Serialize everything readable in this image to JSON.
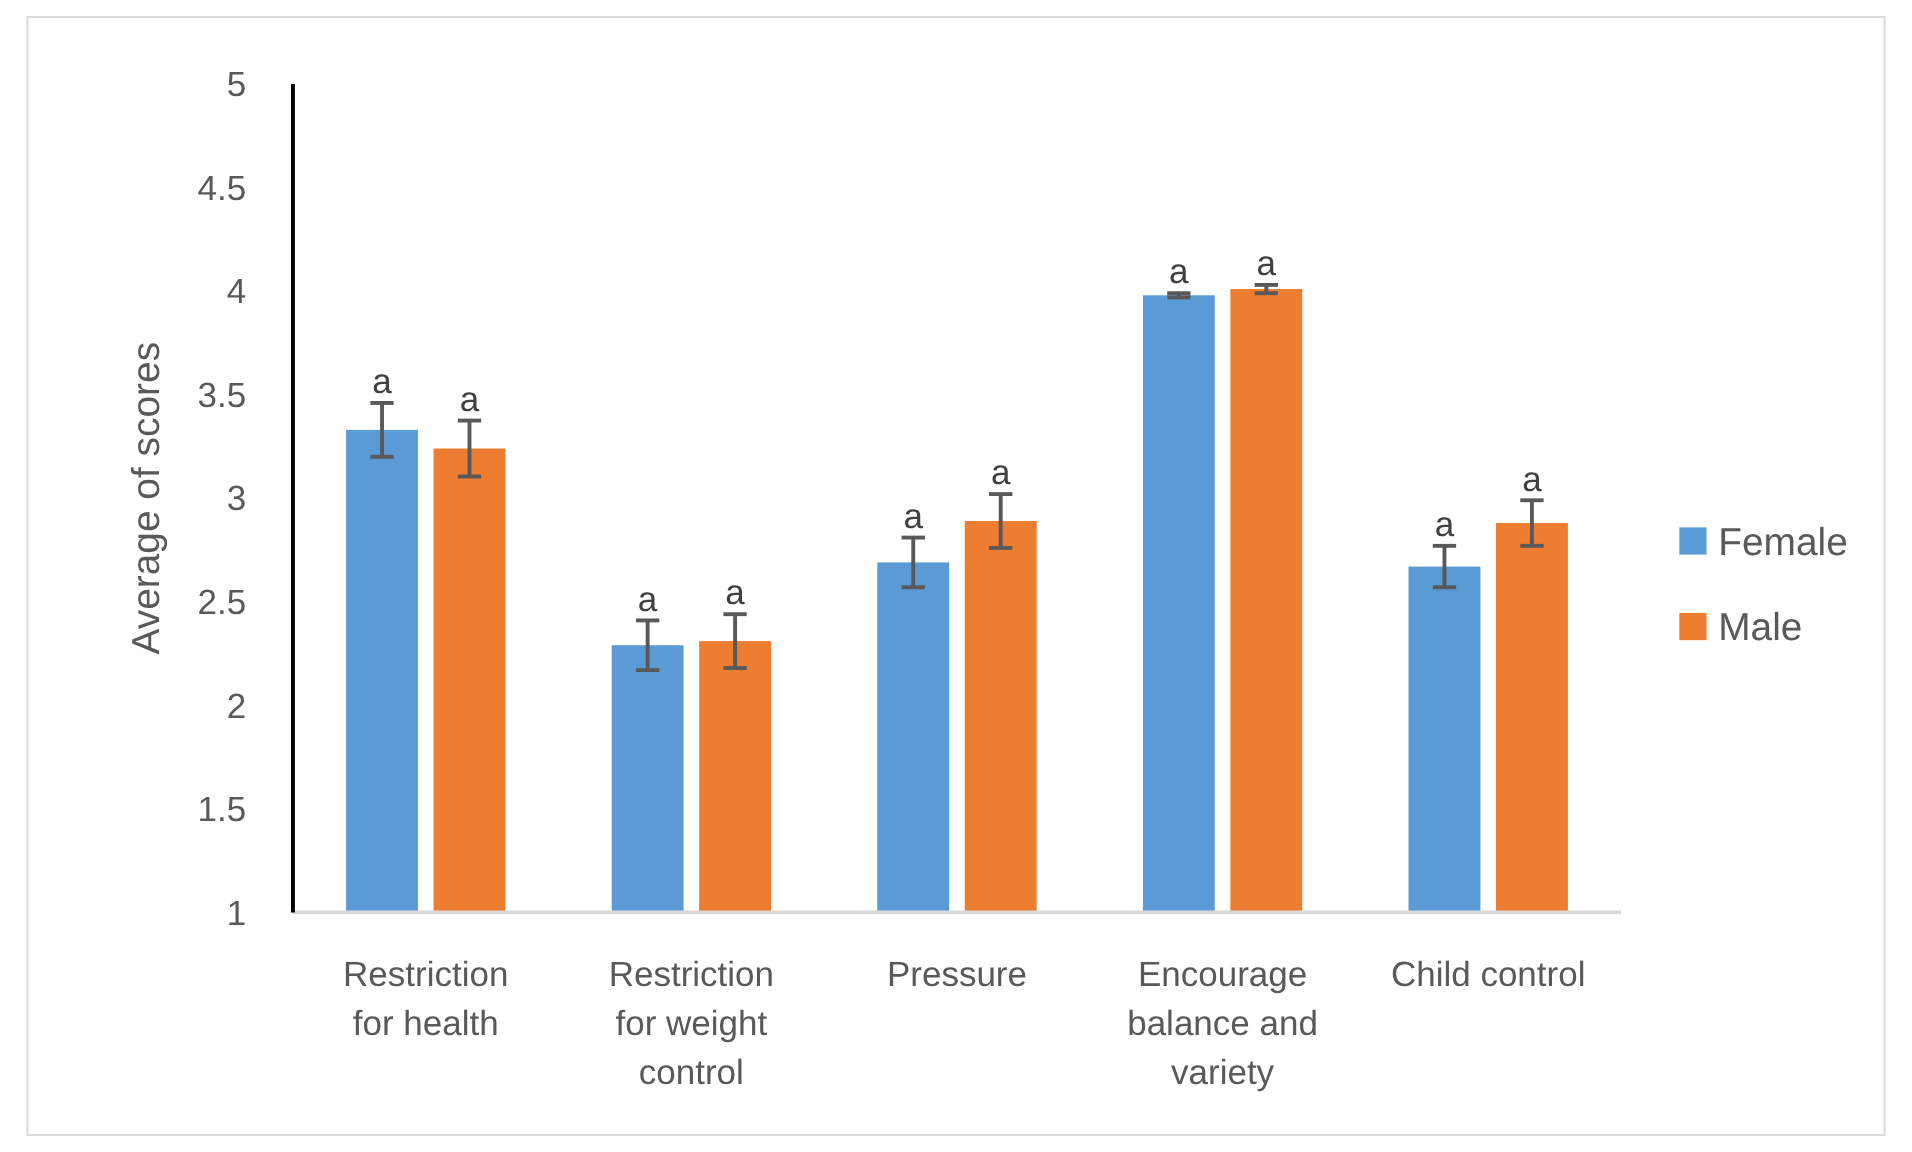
{
  "chart_data": {
    "type": "bar",
    "ylabel": "Average of scores",
    "categories": [
      "Restriction for health",
      "Restriction for weight control",
      "Pressure",
      "Encourage balance and variety",
      "Child control"
    ],
    "series": [
      {
        "name": "Female",
        "color": "#5b9bd5",
        "values": [
          3.33,
          2.29,
          2.69,
          3.98,
          2.67
        ],
        "errors": [
          0.13,
          0.12,
          0.12,
          0.01,
          0.1
        ]
      },
      {
        "name": "Male",
        "color": "#ed7d31",
        "values": [
          3.24,
          2.31,
          2.89,
          4.01,
          2.88
        ],
        "errors": [
          0.135,
          0.13,
          0.13,
          0.02,
          0.11
        ]
      }
    ],
    "ylim": [
      1,
      5
    ],
    "yticks": [
      1,
      1.5,
      2,
      2.5,
      3,
      3.5,
      4,
      4.5,
      5
    ],
    "grid": false,
    "legend": "right",
    "annotations": [
      {
        "text": "a",
        "x": "Restriction for health",
        "y": 3.33
      },
      {
        "text": "a",
        "x": "Restriction for health",
        "y": 3.24
      },
      {
        "text": "a",
        "x": "Restriction for weight control",
        "y": 2.29
      },
      {
        "text": "a",
        "x": "Restriction for weight control",
        "y": 2.31
      },
      {
        "text": "a",
        "x": "Pressure",
        "y": 2.69
      },
      {
        "text": "a",
        "x": "Pressure",
        "y": 2.89
      },
      {
        "text": "a",
        "x": "Encourage balance and variety",
        "y": 3.98
      },
      {
        "text": "a",
        "x": "Encourage balance and variety",
        "y": 4.01
      },
      {
        "text": "a",
        "x": "Child control",
        "y": 2.67
      },
      {
        "text": "a",
        "x": "Child control",
        "y": 2.88
      }
    ]
  }
}
